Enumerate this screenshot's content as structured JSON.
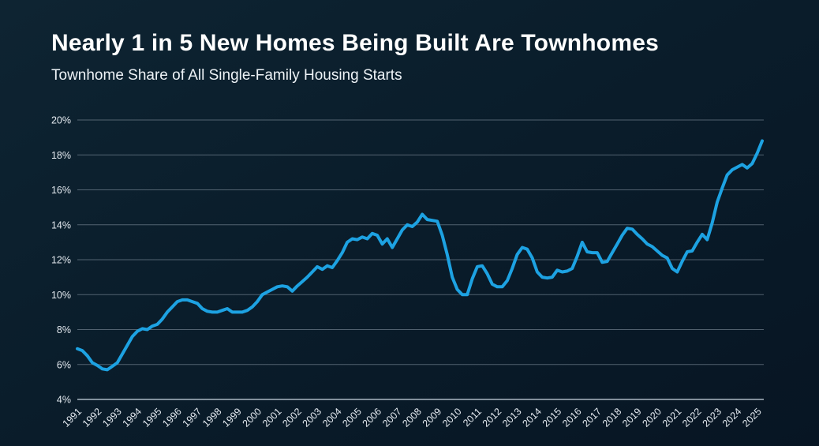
{
  "title": "Nearly 1 in 5 New Homes Being Built Are Townhomes",
  "subtitle": "Townhome Share of All Single-Family Housing Starts",
  "colors": {
    "background_top": "#0e2432",
    "background_bottom": "#071523",
    "line": "#1da2e2",
    "gridline": "rgba(170,184,198,0.45)",
    "axis_line": "rgba(200,212,222,0.85)",
    "tick_text": "#e4eaf0",
    "title_text": "#ffffff"
  },
  "chart_data": {
    "type": "line",
    "title": "Nearly 1 in 5 New Homes Being Built Are Townhomes",
    "subtitle": "Townhome Share of All Single-Family Housing Starts",
    "xlabel": "",
    "ylabel": "",
    "ylim": [
      4,
      20
    ],
    "grid": "horizontal-only",
    "legend": "none",
    "frequency": "quarterly",
    "x_start": "1991 Q1",
    "x_end": "2025 Q2",
    "yticks": [
      {
        "value": 20,
        "label": "20%"
      },
      {
        "value": 18,
        "label": "18%"
      },
      {
        "value": 16,
        "label": "16%"
      },
      {
        "value": 14,
        "label": "14%"
      },
      {
        "value": 12,
        "label": "12%"
      },
      {
        "value": 10,
        "label": "10%"
      },
      {
        "value": 8,
        "label": "8%"
      },
      {
        "value": 6,
        "label": "6%"
      },
      {
        "value": 4,
        "label": "4%"
      }
    ],
    "xticks": [
      "1991",
      "1992",
      "1993",
      "1994",
      "1995",
      "1996",
      "1997",
      "1998",
      "1999",
      "2000",
      "2001",
      "2002",
      "2003",
      "2004",
      "2005",
      "2006",
      "2007",
      "2008",
      "2009",
      "2010",
      "2011",
      "2012",
      "2013",
      "2014",
      "2015",
      "2016",
      "2017",
      "2018",
      "2019",
      "2020",
      "2021",
      "2022",
      "2023",
      "2024",
      "2025"
    ],
    "series": [
      {
        "name": "Townhome share of single-family housing starts (%)",
        "values": [
          6.9,
          6.8,
          6.5,
          6.1,
          5.95,
          5.75,
          5.7,
          5.9,
          6.1,
          6.6,
          7.1,
          7.6,
          7.9,
          8.05,
          8.0,
          8.2,
          8.3,
          8.6,
          9.0,
          9.3,
          9.6,
          9.7,
          9.7,
          9.6,
          9.5,
          9.2,
          9.05,
          9.0,
          9.0,
          9.1,
          9.2,
          9.0,
          9.0,
          9.0,
          9.1,
          9.3,
          9.6,
          10.0,
          10.15,
          10.3,
          10.45,
          10.5,
          10.45,
          10.2,
          10.5,
          10.75,
          11.0,
          11.3,
          11.6,
          11.45,
          11.65,
          11.55,
          11.95,
          12.4,
          13.0,
          13.2,
          13.15,
          13.3,
          13.2,
          13.5,
          13.4,
          12.9,
          13.2,
          12.7,
          13.2,
          13.7,
          14.0,
          13.9,
          14.15,
          14.6,
          14.3,
          14.25,
          14.2,
          13.4,
          12.3,
          11.0,
          10.3,
          10.0,
          10.0,
          10.9,
          11.6,
          11.65,
          11.2,
          10.6,
          10.45,
          10.45,
          10.8,
          11.5,
          12.3,
          12.7,
          12.6,
          12.1,
          11.3,
          11.0,
          10.95,
          11.0,
          11.4,
          11.3,
          11.35,
          11.5,
          12.2,
          13.0,
          12.45,
          12.4,
          12.4,
          11.85,
          11.9,
          12.4,
          12.9,
          13.4,
          13.8,
          13.75,
          13.45,
          13.2,
          12.9,
          12.75,
          12.5,
          12.25,
          12.1,
          11.5,
          11.3,
          11.9,
          12.45,
          12.5,
          13.0,
          13.45,
          13.15,
          14.1,
          15.3,
          16.1,
          16.85,
          17.15,
          17.3,
          17.45,
          17.25,
          17.5,
          18.1,
          18.8
        ]
      }
    ]
  }
}
